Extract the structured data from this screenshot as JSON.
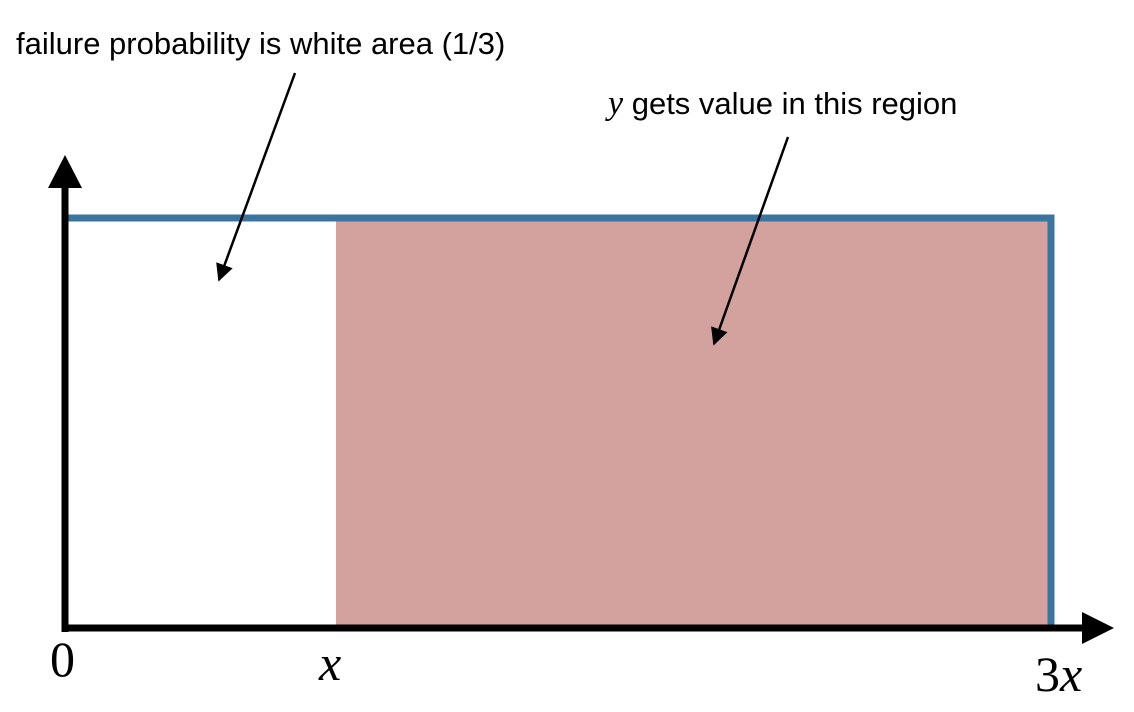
{
  "annotations": {
    "failure_label": "failure probability is white area (1/3)",
    "y_var": "y",
    "y_region_label": " gets value in this region"
  },
  "axis_labels": {
    "origin": "0",
    "x_tick": "x",
    "x_end_num": "3",
    "x_end_var": "x"
  },
  "colors": {
    "shaded_region": "#d3a29f",
    "uniform_outline": "#3a759f",
    "axis": "#000000",
    "background": "#ffffff"
  }
}
